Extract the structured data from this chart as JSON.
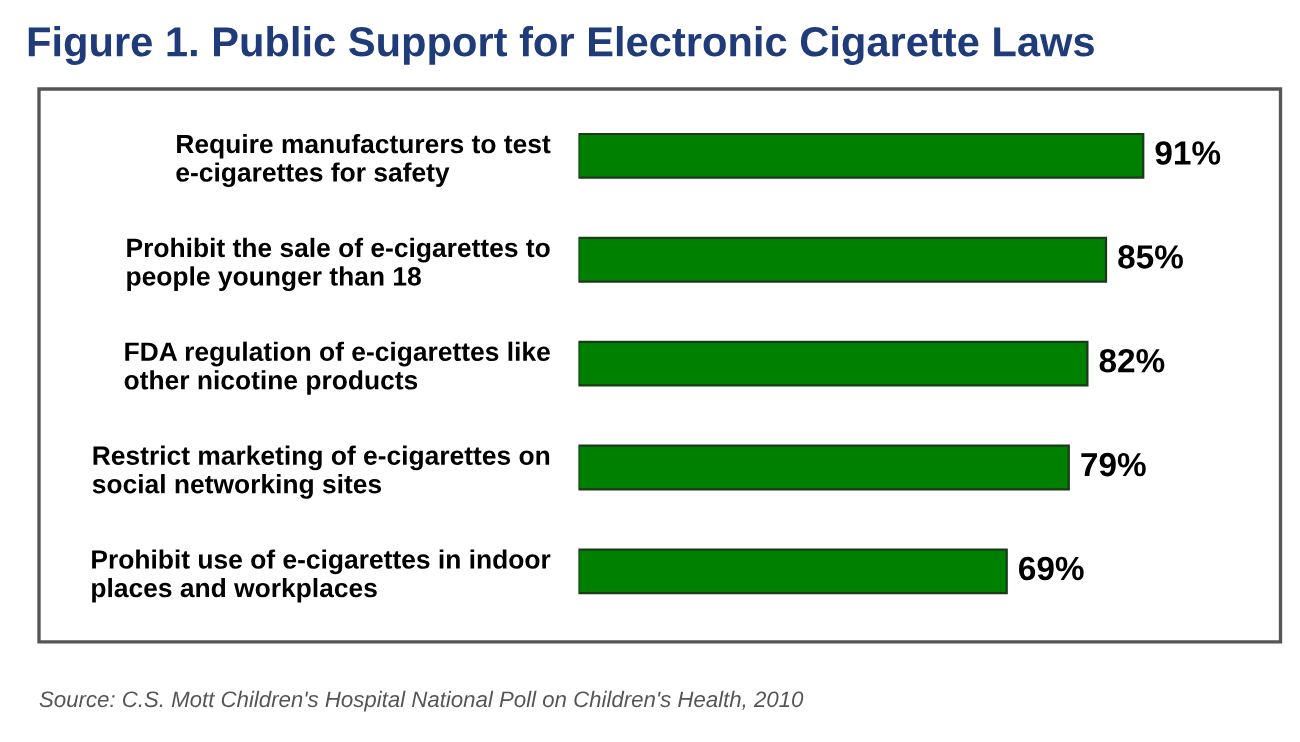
{
  "chart_data": {
    "type": "bar",
    "orientation": "horizontal",
    "title": "Figure 1. Public Support for Electronic Cigarette Laws",
    "categories": [
      "Require manufacturers to test\ne-cigarettes for safety",
      "Prohibit the sale of e-cigarettes to\npeople younger than 18",
      "FDA regulation of e-cigarettes like\nother nicotine products",
      "Restrict marketing of e-cigarettes on\nsocial networking sites",
      "Prohibit use of e-cigarettes in indoor\nplaces and workplaces"
    ],
    "values": [
      91,
      85,
      82,
      79,
      69
    ],
    "color": "#008000",
    "value_labels": [
      "91%",
      "85%",
      "82%",
      "79%",
      "69%"
    ],
    "tick_labels": "y",
    "grid": false,
    "legend": false,
    "annotations": [
      "Source: C.S. Mott Children's Hospital National Poll on Children's Health, 2010"
    ]
  }
}
